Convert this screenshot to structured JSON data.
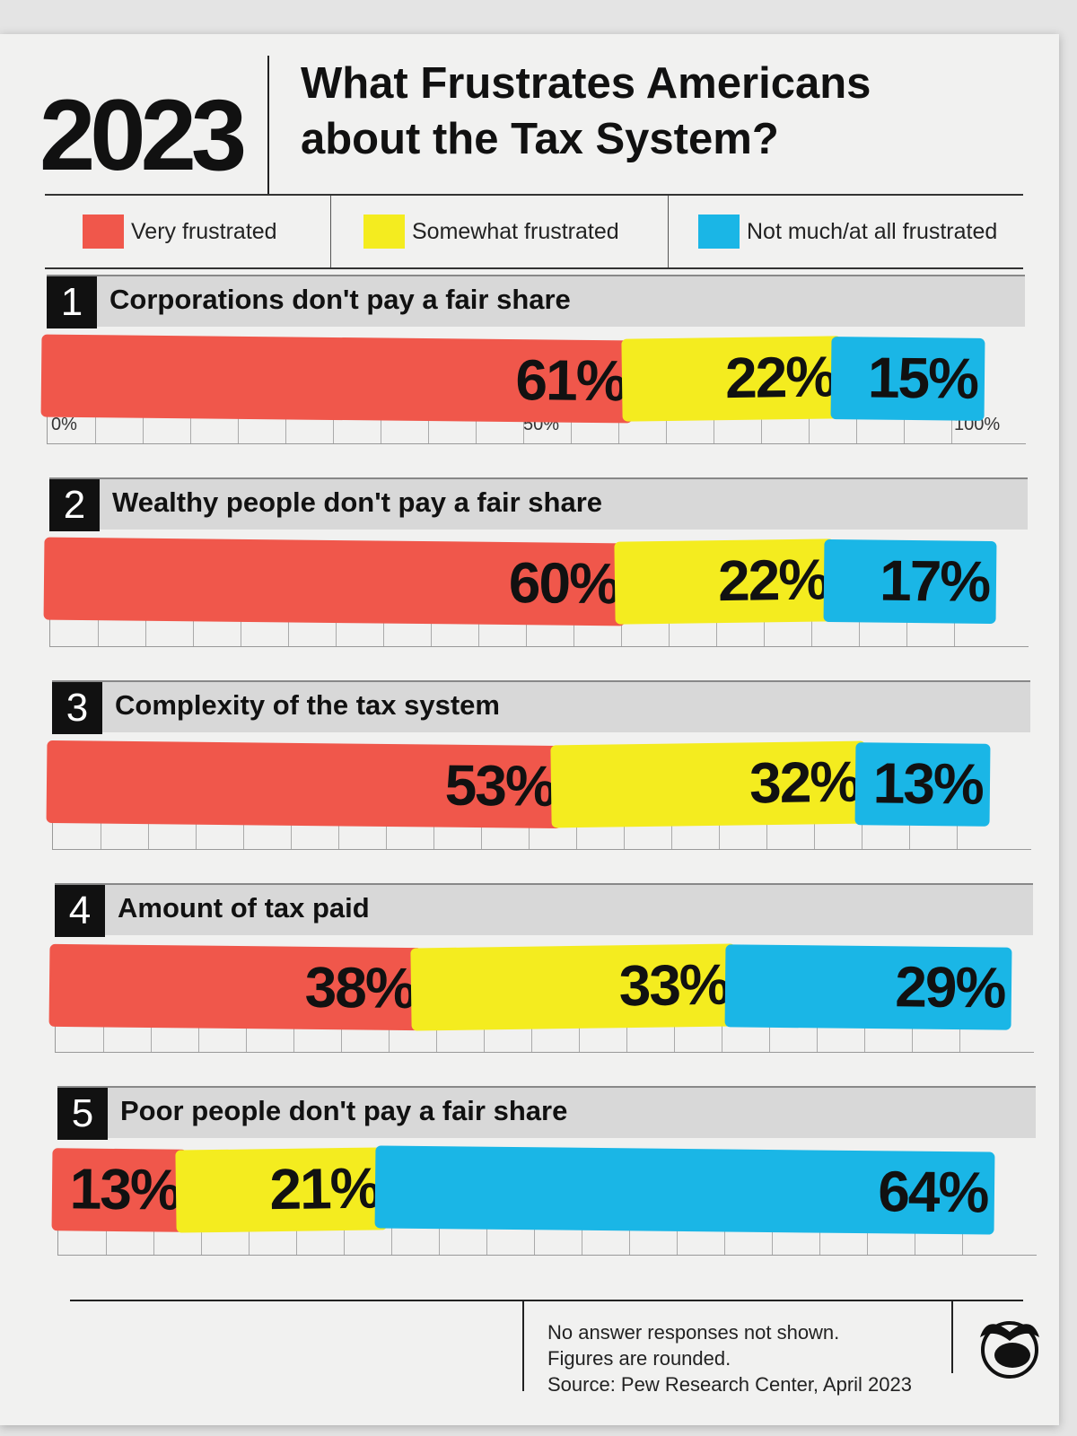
{
  "header": {
    "year": "2023",
    "title_line1": "What Frustrates Americans",
    "title_line2": "about the Tax System?"
  },
  "colors": {
    "very": "#f0574b",
    "somewhat": "#f4ec1f",
    "not": "#1ab6e6"
  },
  "chart_data": {
    "type": "bar",
    "stacked": true,
    "orientation": "horizontal",
    "xlim": [
      0,
      100
    ],
    "tick_labels": [
      "0%",
      "50%",
      "100%"
    ],
    "legend": [
      "Very frustrated",
      "Somewhat frustrated",
      "Not much/at all frustrated"
    ],
    "categories": [
      {
        "num": "1",
        "label": "Corporations don't pay a fair share"
      },
      {
        "num": "2",
        "label": "Wealthy people don't pay a fair share"
      },
      {
        "num": "3",
        "label": "Complexity of the tax system"
      },
      {
        "num": "4",
        "label": "Amount of tax paid"
      },
      {
        "num": "5",
        "label": "Poor people don't pay a fair share"
      }
    ],
    "series": [
      {
        "name": "Very frustrated",
        "values": [
          61,
          60,
          53,
          38,
          13
        ],
        "labels": [
          "61%",
          "60%",
          "53%",
          "38%",
          "13%"
        ]
      },
      {
        "name": "Somewhat frustrated",
        "values": [
          22,
          22,
          32,
          33,
          21
        ],
        "labels": [
          "22%",
          "22%",
          "32%",
          "33%",
          "21%"
        ]
      },
      {
        "name": "Not much/at all frustrated",
        "values": [
          15,
          17,
          13,
          29,
          64
        ],
        "labels": [
          "15%",
          "17%",
          "13%",
          "29%",
          "64%"
        ]
      }
    ]
  },
  "footer": {
    "note1": "No answer responses not shown.",
    "note2": "Figures are rounded.",
    "source": "Source: Pew Research Center, April 2023",
    "logo_icon": "piggy-bank-binoculars-logo"
  }
}
